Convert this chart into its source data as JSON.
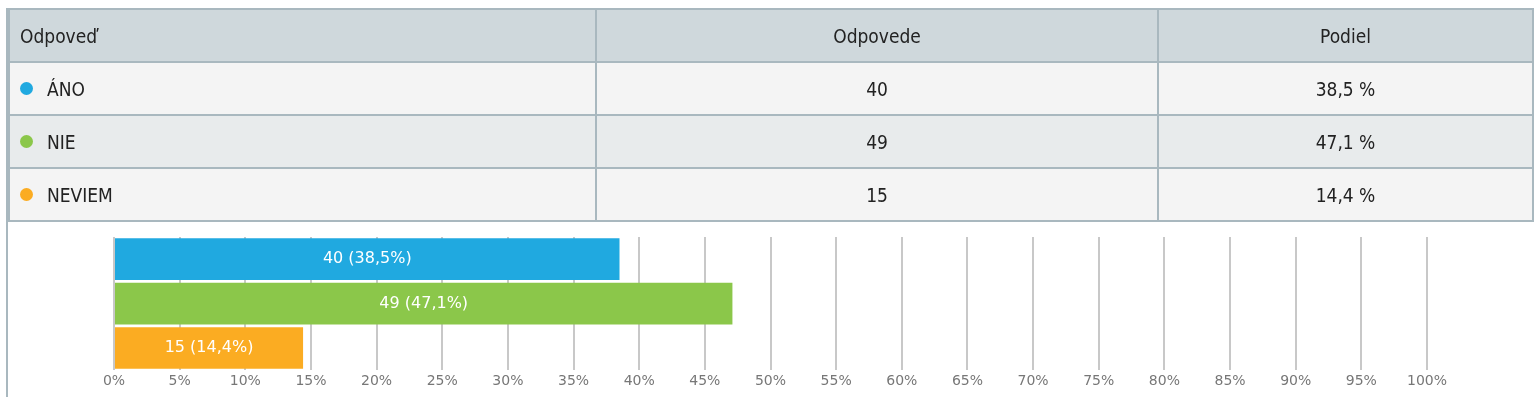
{
  "chart_data": {
    "type": "bar",
    "orientation": "horizontal",
    "categories": [
      null,
      null,
      null
    ],
    "values": [
      38.5,
      47.1,
      14.4
    ],
    "colors": [
      "#20a9e0",
      "#8bc74a",
      "#fbac22"
    ],
    "value_labels": [
      "40 (38,5%)",
      "49 (47,1%)",
      "15 (14,4%)"
    ],
    "xlim": [
      0,
      100
    ],
    "xticks": [
      {
        "value": 0,
        "label": "0%"
      },
      {
        "value": 5,
        "label": "5%"
      },
      {
        "value": 10,
        "label": "10%"
      },
      {
        "value": 15,
        "label": "15%"
      },
      {
        "value": 20,
        "label": "20%"
      },
      {
        "value": 25,
        "label": "25%"
      },
      {
        "value": 30,
        "label": "30%"
      },
      {
        "value": 35,
        "label": "35%"
      },
      {
        "value": 40,
        "label": "40%"
      },
      {
        "value": 45,
        "label": "45%"
      },
      {
        "value": 50,
        "label": "50%"
      },
      {
        "value": 55,
        "label": "55%"
      },
      {
        "value": 60,
        "label": "60%"
      },
      {
        "value": 65,
        "label": "65%"
      },
      {
        "value": 70,
        "label": "70%"
      },
      {
        "value": 75,
        "label": "75%"
      },
      {
        "value": 80,
        "label": "80%"
      },
      {
        "value": 85,
        "label": "85%"
      },
      {
        "value": 90,
        "label": "90%"
      },
      {
        "value": 95,
        "label": "95%"
      },
      {
        "value": 100,
        "label": "100%"
      }
    ],
    "grid": "x",
    "tick_labels": "x",
    "annotations": [
      "Odpoveď",
      "Odpovede",
      "Podiel",
      "ÁNO",
      "40",
      "38,5 %",
      "NIE",
      "49",
      "47,1 %",
      "NEVIEM",
      "15",
      "14,4 %"
    ]
  }
}
